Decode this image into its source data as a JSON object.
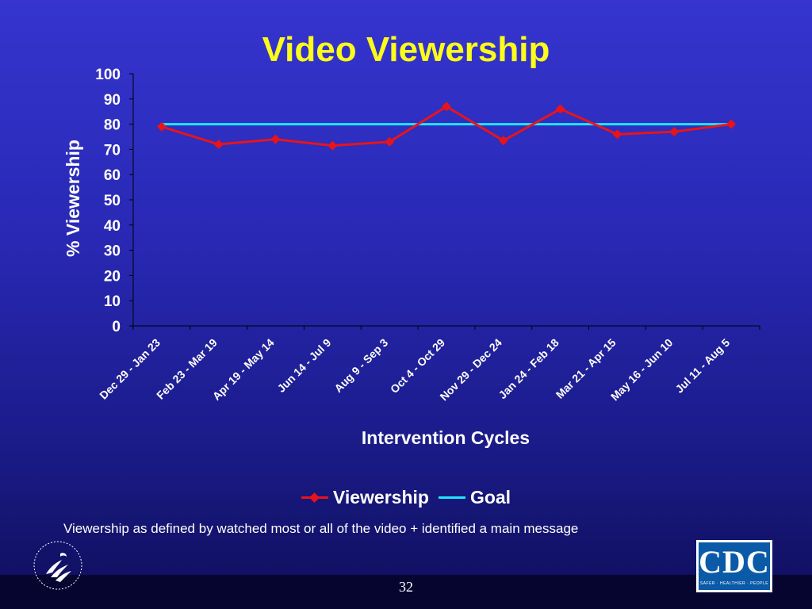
{
  "slide": {
    "title": "Video Viewership",
    "footnote": "Viewership as defined by watched most or all of the video + identified a main message",
    "page_number": "32",
    "logos": {
      "left": "hhs-eagle-seal",
      "right_text": "CDC",
      "right_tagline": "SAFER · HEALTHIER · PEOPLE"
    }
  },
  "colors": {
    "background": "#2e2ec4",
    "title": "#ffff1a",
    "viewership": "#e8141a",
    "goal": "#1ee6ff",
    "text": "#ffffff"
  },
  "chart_data": {
    "type": "line",
    "title": "Video Viewership",
    "xlabel": "Intervention Cycles",
    "ylabel": "% Viewership",
    "ylim": [
      0,
      100
    ],
    "yticks": [
      0,
      10,
      20,
      30,
      40,
      50,
      60,
      70,
      80,
      90,
      100
    ],
    "grid": false,
    "legend_position": "bottom",
    "categories": [
      "Dec 29 - Jan 23",
      "Feb 23 - Mar 19",
      "Apr 19 - May 14",
      "Jun 14 - Jul 9",
      "Aug 9 - Sep 3",
      "Oct 4 - Oct 29",
      "Nov 29 - Dec 24",
      "Jan 24 - Feb 18",
      "Mar 21 - Apr 15",
      "May 16 - Jun 10",
      "Jul 11 - Aug 5"
    ],
    "series": [
      {
        "name": "Viewership",
        "marker": "diamond",
        "values": [
          79,
          72,
          74,
          71.5,
          73,
          87,
          73.5,
          86,
          76,
          77,
          80
        ]
      },
      {
        "name": "Goal",
        "marker": "none",
        "values": [
          80,
          80,
          80,
          80,
          80,
          80,
          80,
          80,
          80,
          80,
          80
        ]
      }
    ]
  }
}
